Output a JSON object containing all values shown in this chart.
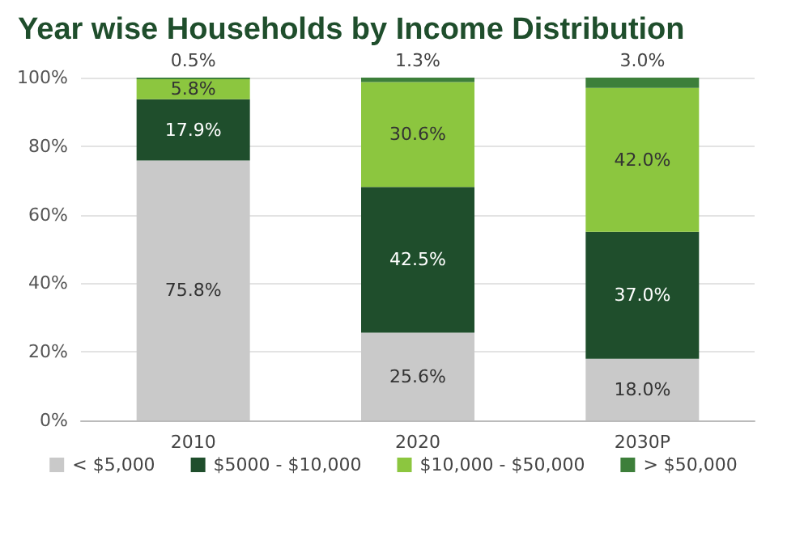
{
  "chart_data": {
    "type": "bar",
    "title": "Year wise Households by Income Distribution",
    "categories": [
      "2010",
      "2020",
      "2030P"
    ],
    "stacked": true,
    "series": [
      {
        "name": "< $5,000",
        "color": "#c9c9c9",
        "values": [
          75.8,
          25.6,
          18.0
        ],
        "value_labels": [
          "75.8%",
          "25.6%",
          "18.0%"
        ]
      },
      {
        "name": "$5000 - $10,000",
        "color": "#1f4e2c",
        "values": [
          17.9,
          42.5,
          37.0
        ],
        "value_labels": [
          "17.9%",
          "42.5%",
          "37.0%"
        ]
      },
      {
        "name": "$10,000 - $50,000",
        "color": "#8cc63f",
        "values": [
          5.8,
          30.6,
          42.0
        ],
        "value_labels": [
          "5.8%",
          "30.6%",
          "42.0%"
        ]
      },
      {
        "name": "> $50,000",
        "color": "#3d7f3a",
        "values": [
          0.5,
          1.3,
          3.0
        ],
        "value_labels": [
          "0.5%",
          "1.3%",
          "3.0%"
        ]
      }
    ],
    "ylim": [
      0,
      100
    ],
    "yticks": [
      {
        "value": 0,
        "label": "0%"
      },
      {
        "value": 20,
        "label": "20%"
      },
      {
        "value": 40,
        "label": "40%"
      },
      {
        "value": 60,
        "label": "60%"
      },
      {
        "value": 80,
        "label": "80%"
      },
      {
        "value": 100,
        "label": "100%"
      }
    ],
    "grid": "y",
    "legend": "bottom"
  }
}
